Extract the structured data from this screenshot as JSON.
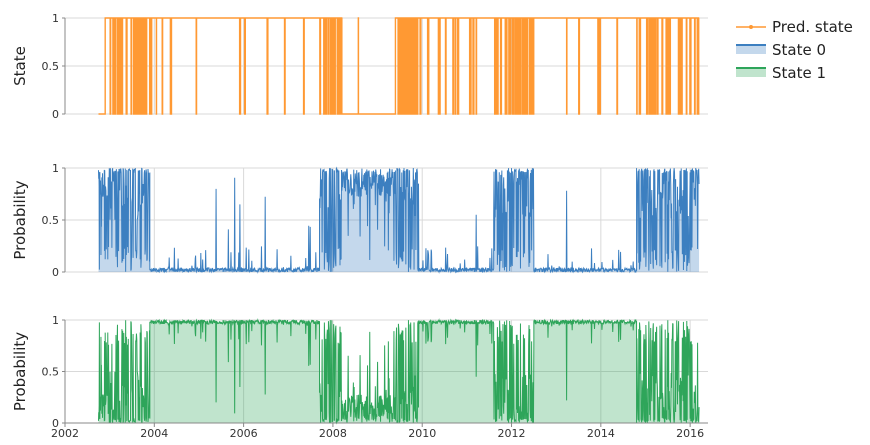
{
  "chart_data": {
    "type": "line",
    "x_range": [
      2002,
      2016.4
    ],
    "x_ticks": [
      "2002",
      "2004",
      "2006",
      "2008",
      "2010",
      "2012",
      "2014",
      "2016"
    ],
    "legend": {
      "placement": "top-right",
      "entries": [
        {
          "label": "Pred. state",
          "color": "#ff9933"
        },
        {
          "label": "State 0",
          "color": "#3c7fc0"
        },
        {
          "label": "State 1",
          "color": "#2ea55a"
        }
      ]
    },
    "grid": true,
    "data_start": 2002.75,
    "data_end": 2016.2,
    "panels": [
      {
        "ylabel": "State",
        "ylim": [
          0,
          1
        ],
        "y_ticks": [
          "0",
          "0.5",
          "1"
        ],
        "series": "Pred. state",
        "color": "#ff9933",
        "fill": false,
        "segments": [
          {
            "start": 2002.75,
            "end": 2002.9,
            "state": 0,
            "switches": 0
          },
          {
            "start": 2002.9,
            "end": 2003.9,
            "state": 1,
            "switches": 28
          },
          {
            "start": 2003.9,
            "end": 2005.0,
            "state": 1,
            "switches": 6
          },
          {
            "start": 2005.0,
            "end": 2006.9,
            "state": 1,
            "switches": 3
          },
          {
            "start": 2006.9,
            "end": 2007.7,
            "state": 1,
            "switches": 2
          },
          {
            "start": 2007.7,
            "end": 2008.2,
            "state": 1,
            "switches": 22
          },
          {
            "start": 2008.2,
            "end": 2009.4,
            "state": 0,
            "switches": 1
          },
          {
            "start": 2009.4,
            "end": 2009.9,
            "state": 1,
            "switches": 30
          },
          {
            "start": 2009.9,
            "end": 2011.6,
            "state": 1,
            "switches": 14
          },
          {
            "start": 2011.6,
            "end": 2012.5,
            "state": 1,
            "switches": 34
          },
          {
            "start": 2012.5,
            "end": 2014.8,
            "state": 1,
            "switches": 5
          },
          {
            "start": 2014.8,
            "end": 2016.2,
            "state": 1,
            "switches": 26
          }
        ]
      },
      {
        "ylabel": "Probability",
        "ylim": [
          0,
          1
        ],
        "y_ticks": [
          "0",
          "0.5",
          "1"
        ],
        "series": "State 0",
        "color": "#3c7fc0",
        "fill": true,
        "segments": [
          {
            "start": 2002.75,
            "end": 2002.9,
            "state": 0,
            "switches": 0
          },
          {
            "start": 2002.9,
            "end": 2003.9,
            "state": 1,
            "switches": 28
          },
          {
            "start": 2003.9,
            "end": 2005.0,
            "state": 1,
            "switches": 6
          },
          {
            "start": 2005.0,
            "end": 2006.9,
            "state": 1,
            "switches": 3
          },
          {
            "start": 2006.9,
            "end": 2007.7,
            "state": 1,
            "switches": 2
          },
          {
            "start": 2007.7,
            "end": 2008.2,
            "state": 1,
            "switches": 22
          },
          {
            "start": 2008.2,
            "end": 2009.4,
            "state": 0,
            "switches": 1
          },
          {
            "start": 2009.4,
            "end": 2009.9,
            "state": 1,
            "switches": 30
          },
          {
            "start": 2009.9,
            "end": 2011.6,
            "state": 1,
            "switches": 14
          },
          {
            "start": 2011.6,
            "end": 2012.5,
            "state": 1,
            "switches": 34
          },
          {
            "start": 2012.5,
            "end": 2014.8,
            "state": 1,
            "switches": 5
          },
          {
            "start": 2014.8,
            "end": 2016.2,
            "state": 1,
            "switches": 26
          }
        ]
      },
      {
        "ylabel": "Probability",
        "ylim": [
          0,
          1
        ],
        "y_ticks": [
          "0",
          "0.5",
          "1"
        ],
        "series": "State 1",
        "color": "#2ea55a",
        "fill": true,
        "segments": [
          {
            "start": 2002.75,
            "end": 2002.9,
            "state": 0,
            "switches": 0
          },
          {
            "start": 2002.9,
            "end": 2003.9,
            "state": 1,
            "switches": 28
          },
          {
            "start": 2003.9,
            "end": 2005.0,
            "state": 1,
            "switches": 6
          },
          {
            "start": 2005.0,
            "end": 2006.9,
            "state": 1,
            "switches": 3
          },
          {
            "start": 2006.9,
            "end": 2007.7,
            "state": 1,
            "switches": 2
          },
          {
            "start": 2007.7,
            "end": 2008.2,
            "state": 1,
            "switches": 22
          },
          {
            "start": 2008.2,
            "end": 2009.4,
            "state": 0,
            "switches": 1
          },
          {
            "start": 2009.4,
            "end": 2009.9,
            "state": 1,
            "switches": 30
          },
          {
            "start": 2009.9,
            "end": 2011.6,
            "state": 1,
            "switches": 14
          },
          {
            "start": 2011.6,
            "end": 2012.5,
            "state": 1,
            "switches": 34
          },
          {
            "start": 2012.5,
            "end": 2014.8,
            "state": 1,
            "switches": 5
          },
          {
            "start": 2014.8,
            "end": 2016.2,
            "state": 1,
            "switches": 26
          }
        ]
      }
    ]
  }
}
